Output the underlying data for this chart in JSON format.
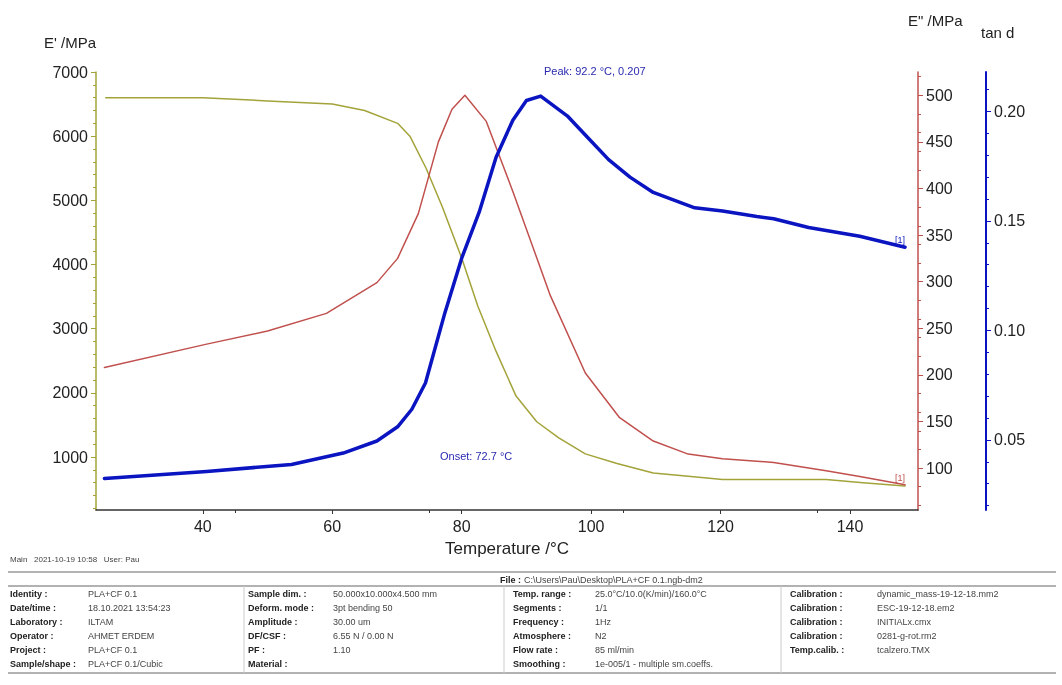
{
  "chart_data": {
    "type": "line",
    "xlabel": "Temperature /°C",
    "ylabel": "E' /MPa",
    "y2label": "E\" /MPa",
    "y3label": "tan d",
    "xlim": [
      23.5,
      150.5
    ],
    "xticks": [
      40,
      60,
      80,
      100,
      120,
      140
    ],
    "ylim": [
      175,
      7000
    ],
    "yticks": [
      1000,
      2000,
      3000,
      4000,
      5000,
      6000,
      7000
    ],
    "y2lim": [
      55,
      525
    ],
    "y2ticks": [
      100,
      150,
      200,
      250,
      300,
      350,
      400,
      450,
      500
    ],
    "y3lim": [
      0.018,
      0.218
    ],
    "y3ticks": [
      {
        "value": 0.05,
        "label": "0.05"
      },
      {
        "value": 0.1,
        "label": "0.10"
      },
      {
        "value": 0.15,
        "label": "0.15"
      },
      {
        "value": 0.2,
        "label": "0.20"
      }
    ],
    "grid": false,
    "legend": false,
    "marker": "none",
    "line_style": "solid",
    "series": [
      {
        "color": "#a3a33a",
        "x": [
          25,
          40,
          50,
          60,
          65,
          70.1,
          72,
          74.5,
          77,
          80,
          82.5,
          85.3,
          88.4,
          91.6,
          95,
          99.1,
          104,
          109.6,
          115,
          120.3,
          128,
          136.3,
          142,
          148.5
        ],
        "values": [
          6600,
          6600,
          6550,
          6500,
          6400,
          6200,
          6000,
          5500,
          4900,
          4100,
          3350,
          2650,
          1950,
          1550,
          1300,
          1050,
          900,
          750,
          700,
          650,
          650,
          650,
          600,
          550
        ]
      },
      {
        "name": "[1]",
        "axis": "y2",
        "color": "#c0504d",
        "x": [
          24.8,
          40.6,
          50,
          59.1,
          66.9,
          70.1,
          73.3,
          76.4,
          78.5,
          80.5,
          83.8,
          88,
          93.7,
          99.1,
          104.4,
          109.6,
          115,
          120.3,
          128.2,
          136.3,
          141.5,
          148.5
        ],
        "values": [
          208,
          233,
          247,
          266,
          299,
          325,
          373,
          450,
          485,
          500,
          472,
          395,
          285,
          202,
          154,
          129,
          115,
          110,
          106,
          97,
          91,
          82
        ]
      },
      {
        "name": "[1]",
        "axis": "y3",
        "color": "#0a14c0",
        "x": [
          24.8,
          40.6,
          53.7,
          61.7,
          66.9,
          70.1,
          72.3,
          74.4,
          77.4,
          80,
          82.7,
          85.3,
          87.9,
          90,
          92.2,
          96.3,
          99.5,
          102.7,
          106,
          109.6,
          116,
          120.3,
          125.6,
          128.2,
          133.6,
          141.5,
          148.5
        ],
        "values": [
          0.0324,
          0.0356,
          0.0388,
          0.044,
          0.0495,
          0.056,
          0.064,
          0.076,
          0.108,
          0.133,
          0.154,
          0.179,
          0.196,
          0.205,
          0.207,
          0.198,
          0.188,
          0.178,
          0.17,
          0.163,
          0.156,
          0.1545,
          0.152,
          0.151,
          0.147,
          0.143,
          0.138
        ]
      }
    ],
    "annotations": [
      "Peak: 92.2 °C, 0.207",
      "Onset: 72.7 °C",
      "Main   2021-10-19 10:58   User: Pau",
      "File : C:\\Users\\Pau\\Desktop\\PLA+CF 0.1.ngb-dm2",
      "Identity : PLA+CF 0.1",
      "Date/time : 18.10.2021 13:54:23",
      "Laboratory : ILTAM",
      "Operator : AHMET ERDEM",
      "Project : PLA+CF 0.1",
      "Sample/shape : PLA+CF 0.1/Cubic",
      "Sample dim. : 50.000x10.000x4.500 mm",
      "Deform. mode : 3pt bending 50",
      "Amplitude : 30.00 um",
      "DF/CSF : 6.55 N / 0.00 N",
      "PF : 1.10",
      "Material :",
      "Temp. range : 25.0°C/10.0(K/min)/160.0°C",
      "Segments : 1/1",
      "Frequency : 1Hz",
      "Atmosphere : N2",
      "Flow rate : 85 ml/min",
      "Smoothing : 1e-005/1 - multiple sm.coeffs.",
      "Calibration : dynamic_mass-19-12-18.mm2",
      "Calibration : ESC-19-12-18.em2",
      "Calibration : INITIALx.cmx",
      "Calibration : 0281-g-rot.rm2",
      "Temp.calib. : tcalzero.TMX"
    ]
  }
}
